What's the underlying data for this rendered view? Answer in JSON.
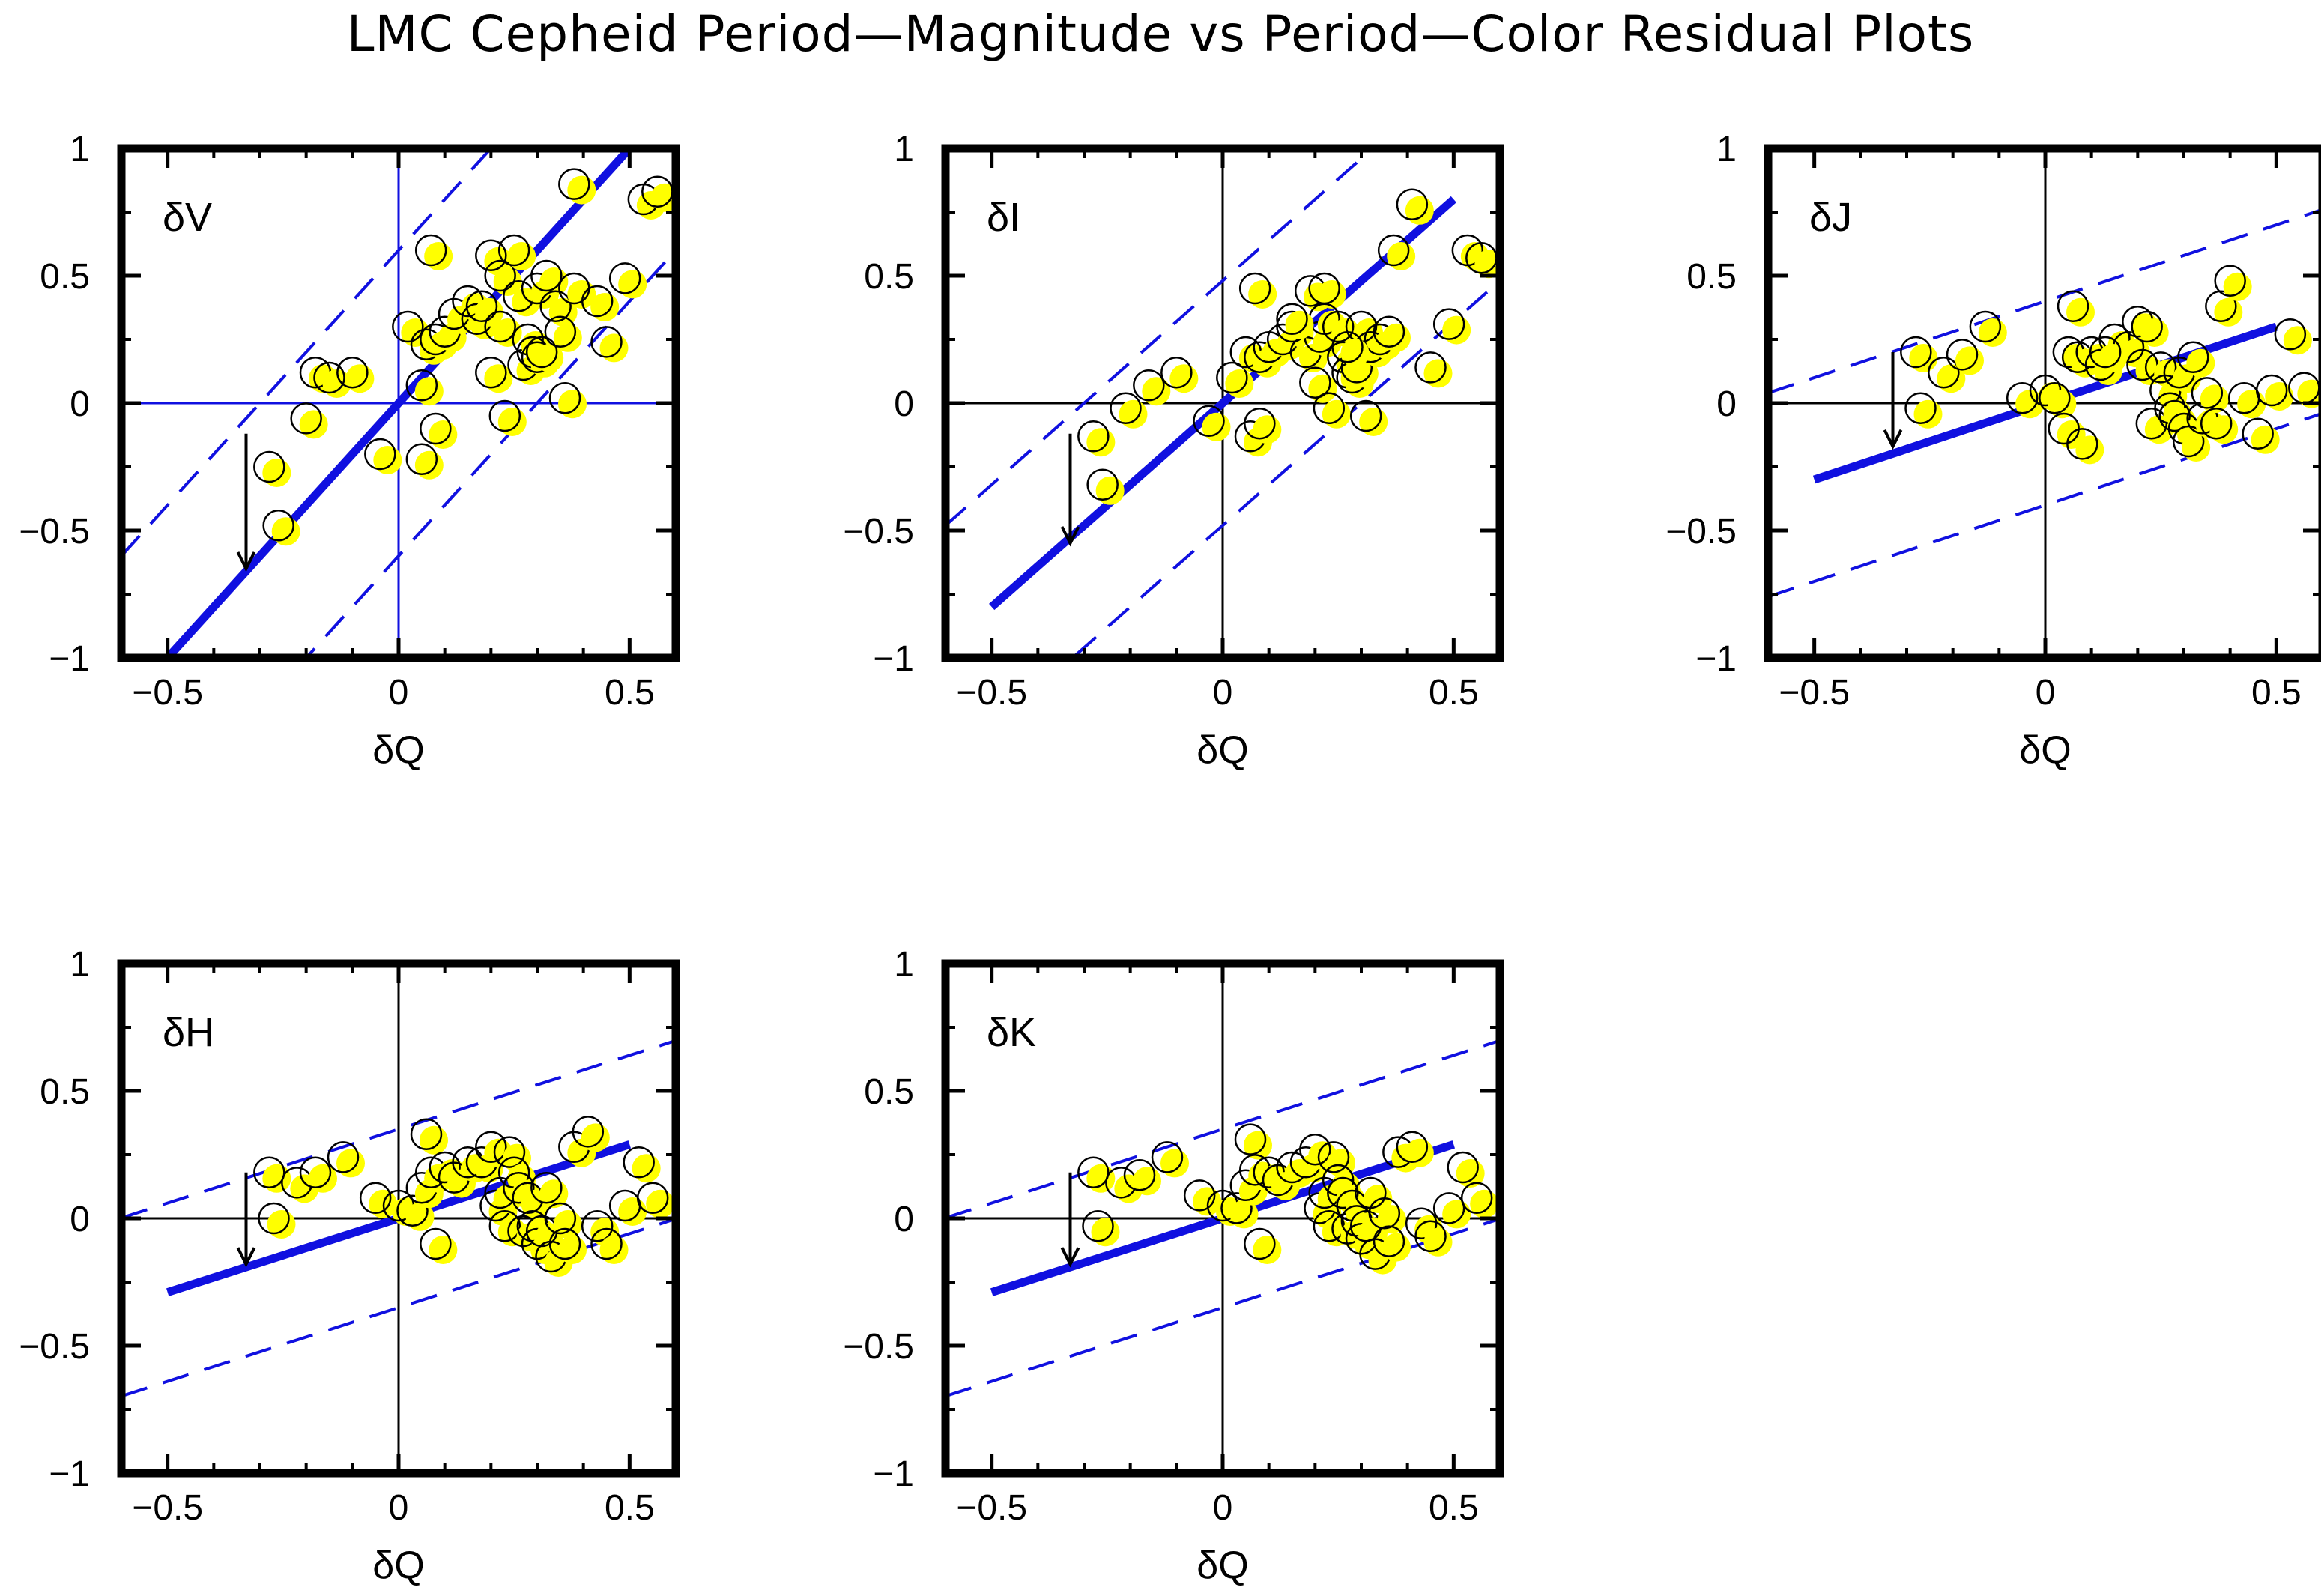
{
  "figure_title": "LMC Cepheid Period—Magnitude vs Period—Color Residual Plots",
  "colors": {
    "line": "#1010e0",
    "marker_fill": "#ffff00",
    "marker_edge": "#000000",
    "frame": "#000000",
    "zero_line_v_panel": "#1010e0"
  },
  "chart_data": [
    {
      "type": "scatter",
      "panel_label": "δV",
      "xlabel": "δQ",
      "xlim": [
        -0.6,
        0.6
      ],
      "ylim": [
        -1,
        1
      ],
      "xticks": [
        -0.5,
        0,
        0.5
      ],
      "xtick_labels": [
        "−0.5",
        "0",
        "0.5"
      ],
      "yticks": [
        -1,
        -0.5,
        0,
        0.5,
        1
      ],
      "ytick_labels": [
        "−1",
        "−0.5",
        "0",
        "0.5",
        "1"
      ],
      "zero_lines_color": "blue",
      "fit_line": {
        "slope": 2.0,
        "intercept": 0.0
      },
      "band_offset": 0.6,
      "arrow": {
        "x": -0.33,
        "y_from": -0.12,
        "y_to": -0.65
      },
      "points": [
        [
          -0.28,
          -0.25
        ],
        [
          -0.26,
          -0.48
        ],
        [
          -0.2,
          -0.06
        ],
        [
          -0.18,
          0.12
        ],
        [
          -0.15,
          0.1
        ],
        [
          -0.1,
          0.12
        ],
        [
          -0.04,
          -0.2
        ],
        [
          0.02,
          0.3
        ],
        [
          0.05,
          0.07
        ],
        [
          0.06,
          0.23
        ],
        [
          0.07,
          0.6
        ],
        [
          0.08,
          0.25
        ],
        [
          0.08,
          -0.1
        ],
        [
          0.1,
          0.28
        ],
        [
          0.12,
          0.35
        ],
        [
          0.15,
          0.4
        ],
        [
          0.17,
          0.33
        ],
        [
          0.18,
          0.38
        ],
        [
          0.2,
          0.58
        ],
        [
          0.2,
          0.12
        ],
        [
          0.22,
          0.3
        ],
        [
          0.22,
          0.5
        ],
        [
          0.23,
          -0.05
        ],
        [
          0.25,
          0.6
        ],
        [
          0.26,
          0.42
        ],
        [
          0.27,
          0.15
        ],
        [
          0.28,
          0.25
        ],
        [
          0.29,
          0.2
        ],
        [
          0.3,
          0.18
        ],
        [
          0.3,
          0.45
        ],
        [
          0.31,
          0.2
        ],
        [
          0.32,
          0.5
        ],
        [
          0.34,
          0.38
        ],
        [
          0.35,
          0.28
        ],
        [
          0.36,
          0.02
        ],
        [
          0.38,
          0.86
        ],
        [
          0.38,
          0.45
        ],
        [
          0.43,
          0.4
        ],
        [
          0.45,
          0.24
        ],
        [
          0.49,
          0.49
        ],
        [
          0.53,
          0.8
        ],
        [
          0.56,
          0.83
        ],
        [
          0.05,
          -0.22
        ]
      ]
    },
    {
      "type": "scatter",
      "panel_label": "δI",
      "xlabel": "δQ",
      "xlim": [
        -0.6,
        0.6
      ],
      "ylim": [
        -1,
        1
      ],
      "xticks": [
        -0.5,
        0,
        0.5
      ],
      "xtick_labels": [
        "−0.5",
        "0",
        "0.5"
      ],
      "yticks": [
        -1,
        -0.5,
        0,
        0.5,
        1
      ],
      "ytick_labels": [
        "−1",
        "−0.5",
        "0",
        "0.5",
        "1"
      ],
      "zero_lines_color": "black",
      "fit_line": {
        "slope": 1.6,
        "intercept": 0.0
      },
      "band_offset": 0.48,
      "arrow": {
        "x": -0.33,
        "y_from": -0.12,
        "y_to": -0.55
      },
      "points": [
        [
          -0.28,
          -0.13
        ],
        [
          -0.26,
          -0.32
        ],
        [
          -0.21,
          -0.02
        ],
        [
          -0.16,
          0.07
        ],
        [
          -0.1,
          0.12
        ],
        [
          -0.03,
          -0.07
        ],
        [
          0.02,
          0.1
        ],
        [
          0.05,
          0.2
        ],
        [
          0.06,
          -0.13
        ],
        [
          0.07,
          0.45
        ],
        [
          0.08,
          0.18
        ],
        [
          0.08,
          -0.08
        ],
        [
          0.1,
          0.22
        ],
        [
          0.13,
          0.25
        ],
        [
          0.15,
          0.3
        ],
        [
          0.18,
          0.2
        ],
        [
          0.19,
          0.44
        ],
        [
          0.2,
          0.08
        ],
        [
          0.21,
          0.26
        ],
        [
          0.22,
          0.45
        ],
        [
          0.22,
          0.33
        ],
        [
          0.23,
          -0.02
        ],
        [
          0.25,
          0.3
        ],
        [
          0.26,
          0.18
        ],
        [
          0.27,
          0.12
        ],
        [
          0.28,
          0.1
        ],
        [
          0.29,
          0.14
        ],
        [
          0.3,
          0.3
        ],
        [
          0.31,
          -0.05
        ],
        [
          0.32,
          0.22
        ],
        [
          0.34,
          0.25
        ],
        [
          0.36,
          0.28
        ],
        [
          0.37,
          0.6
        ],
        [
          0.41,
          0.78
        ],
        [
          0.45,
          0.14
        ],
        [
          0.49,
          0.31
        ],
        [
          0.53,
          0.6
        ],
        [
          0.56,
          0.57
        ],
        [
          0.15,
          0.33
        ],
        [
          0.27,
          0.22
        ]
      ]
    },
    {
      "type": "scatter",
      "panel_label": "δJ",
      "xlabel": "δQ",
      "xlim": [
        -0.6,
        0.6
      ],
      "ylim": [
        -1,
        1
      ],
      "xticks": [
        -0.5,
        0,
        0.5
      ],
      "xtick_labels": [
        "−0.5",
        "0",
        "0.5"
      ],
      "yticks": [
        -1,
        -0.5,
        0,
        0.5,
        1
      ],
      "ytick_labels": [
        "−1",
        "−0.5",
        "0",
        "0.5",
        "1"
      ],
      "zero_lines_color": "black",
      "fit_line": {
        "slope": 0.6,
        "intercept": 0.0
      },
      "band_offset": 0.4,
      "arrow": {
        "x": -0.33,
        "y_from": 0.2,
        "y_to": -0.17
      },
      "points": [
        [
          -0.28,
          0.2
        ],
        [
          -0.27,
          -0.02
        ],
        [
          -0.22,
          0.12
        ],
        [
          -0.18,
          0.19
        ],
        [
          -0.13,
          0.3
        ],
        [
          -0.05,
          0.02
        ],
        [
          0.0,
          0.05
        ],
        [
          0.02,
          0.02
        ],
        [
          0.04,
          -0.1
        ],
        [
          0.05,
          0.2
        ],
        [
          0.06,
          0.38
        ],
        [
          0.07,
          0.18
        ],
        [
          0.08,
          -0.16
        ],
        [
          0.1,
          0.2
        ],
        [
          0.12,
          0.15
        ],
        [
          0.15,
          0.25
        ],
        [
          0.18,
          0.22
        ],
        [
          0.2,
          0.32
        ],
        [
          0.21,
          0.15
        ],
        [
          0.22,
          0.3
        ],
        [
          0.23,
          -0.08
        ],
        [
          0.25,
          0.14
        ],
        [
          0.26,
          0.05
        ],
        [
          0.27,
          -0.02
        ],
        [
          0.28,
          -0.05
        ],
        [
          0.29,
          0.12
        ],
        [
          0.3,
          -0.1
        ],
        [
          0.31,
          -0.15
        ],
        [
          0.32,
          0.18
        ],
        [
          0.34,
          -0.06
        ],
        [
          0.35,
          0.04
        ],
        [
          0.37,
          -0.08
        ],
        [
          0.38,
          0.38
        ],
        [
          0.4,
          0.48
        ],
        [
          0.43,
          0.02
        ],
        [
          0.46,
          -0.12
        ],
        [
          0.49,
          0.05
        ],
        [
          0.53,
          0.27
        ],
        [
          0.56,
          0.06
        ],
        [
          0.13,
          0.2
        ]
      ]
    },
    {
      "type": "scatter",
      "panel_label": "δH",
      "xlabel": "δQ",
      "xlim": [
        -0.6,
        0.6
      ],
      "ylim": [
        -1,
        1
      ],
      "xticks": [
        -0.5,
        0,
        0.5
      ],
      "xtick_labels": [
        "−0.5",
        "0",
        "0.5"
      ],
      "yticks": [
        -1,
        -0.5,
        0,
        0.5,
        1
      ],
      "ytick_labels": [
        "−1",
        "−0.5",
        "0",
        "0.5",
        "1"
      ],
      "zero_lines_color": "black",
      "fit_line": {
        "slope": 0.58,
        "intercept": 0.0
      },
      "band_offset": 0.35,
      "arrow": {
        "x": -0.33,
        "y_from": 0.18,
        "y_to": -0.18
      },
      "points": [
        [
          -0.28,
          0.18
        ],
        [
          -0.27,
          0.0
        ],
        [
          -0.22,
          0.14
        ],
        [
          -0.18,
          0.18
        ],
        [
          -0.12,
          0.24
        ],
        [
          -0.05,
          0.08
        ],
        [
          0.0,
          0.05
        ],
        [
          0.03,
          0.03
        ],
        [
          0.05,
          0.12
        ],
        [
          0.06,
          0.33
        ],
        [
          0.07,
          0.18
        ],
        [
          0.08,
          -0.1
        ],
        [
          0.1,
          0.2
        ],
        [
          0.12,
          0.16
        ],
        [
          0.15,
          0.22
        ],
        [
          0.18,
          0.22
        ],
        [
          0.2,
          0.28
        ],
        [
          0.21,
          0.05
        ],
        [
          0.22,
          0.1
        ],
        [
          0.23,
          -0.03
        ],
        [
          0.24,
          0.26
        ],
        [
          0.25,
          0.18
        ],
        [
          0.26,
          0.12
        ],
        [
          0.27,
          -0.05
        ],
        [
          0.28,
          0.08
        ],
        [
          0.29,
          -0.03
        ],
        [
          0.3,
          -0.1
        ],
        [
          0.31,
          -0.05
        ],
        [
          0.32,
          0.12
        ],
        [
          0.33,
          -0.15
        ],
        [
          0.35,
          0.0
        ],
        [
          0.36,
          -0.1
        ],
        [
          0.38,
          0.28
        ],
        [
          0.41,
          0.34
        ],
        [
          0.43,
          -0.03
        ],
        [
          0.45,
          -0.1
        ],
        [
          0.49,
          0.05
        ],
        [
          0.52,
          0.22
        ],
        [
          0.55,
          0.08
        ]
      ]
    },
    {
      "type": "scatter",
      "panel_label": "δK",
      "xlabel": "δQ",
      "xlim": [
        -0.6,
        0.6
      ],
      "ylim": [
        -1,
        1
      ],
      "xticks": [
        -0.5,
        0,
        0.5
      ],
      "xtick_labels": [
        "−0.5",
        "0",
        "0.5"
      ],
      "yticks": [
        -1,
        -0.5,
        0,
        0.5,
        1
      ],
      "ytick_labels": [
        "−1",
        "−0.5",
        "0",
        "0.5",
        "1"
      ],
      "zero_lines_color": "black",
      "fit_line": {
        "slope": 0.58,
        "intercept": 0.0
      },
      "band_offset": 0.35,
      "arrow": {
        "x": -0.33,
        "y_from": 0.18,
        "y_to": -0.18
      },
      "points": [
        [
          -0.28,
          0.18
        ],
        [
          -0.27,
          -0.03
        ],
        [
          -0.22,
          0.14
        ],
        [
          -0.18,
          0.17
        ],
        [
          -0.12,
          0.24
        ],
        [
          -0.05,
          0.09
        ],
        [
          0.0,
          0.05
        ],
        [
          0.03,
          0.04
        ],
        [
          0.05,
          0.13
        ],
        [
          0.06,
          0.31
        ],
        [
          0.07,
          0.19
        ],
        [
          0.08,
          -0.1
        ],
        [
          0.1,
          0.18
        ],
        [
          0.12,
          0.15
        ],
        [
          0.15,
          0.2
        ],
        [
          0.18,
          0.22
        ],
        [
          0.2,
          0.27
        ],
        [
          0.21,
          0.04
        ],
        [
          0.22,
          0.1
        ],
        [
          0.23,
          -0.03
        ],
        [
          0.24,
          0.24
        ],
        [
          0.25,
          0.15
        ],
        [
          0.26,
          0.1
        ],
        [
          0.27,
          -0.04
        ],
        [
          0.28,
          0.05
        ],
        [
          0.29,
          -0.01
        ],
        [
          0.3,
          -0.08
        ],
        [
          0.31,
          -0.03
        ],
        [
          0.32,
          0.1
        ],
        [
          0.33,
          -0.14
        ],
        [
          0.35,
          0.02
        ],
        [
          0.36,
          -0.09
        ],
        [
          0.38,
          0.26
        ],
        [
          0.41,
          0.28
        ],
        [
          0.43,
          -0.02
        ],
        [
          0.45,
          -0.07
        ],
        [
          0.49,
          0.04
        ],
        [
          0.52,
          0.2
        ],
        [
          0.55,
          0.08
        ]
      ]
    }
  ]
}
